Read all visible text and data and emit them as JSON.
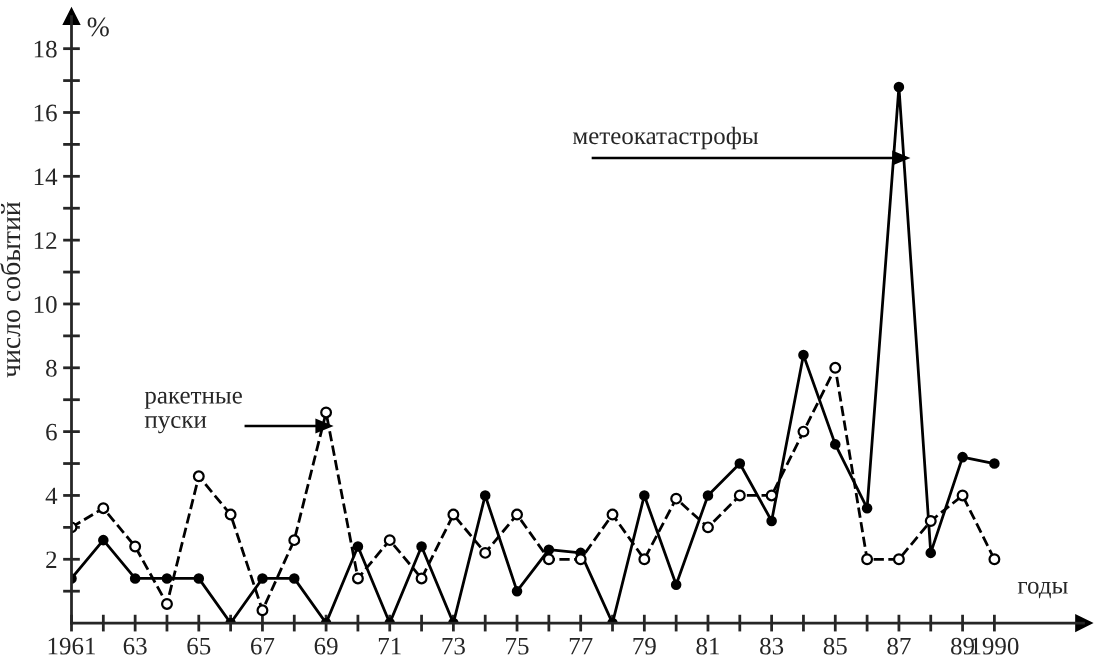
{
  "chart_data": {
    "type": "line",
    "ylabel": "число событий",
    "xlabel": "годы",
    "annotations": [
      "%",
      "метеокатастрофы",
      "ракетные\nпуски"
    ],
    "x": [
      1961,
      1962,
      1963,
      1964,
      1965,
      1966,
      1967,
      1968,
      1969,
      1970,
      1971,
      1972,
      1973,
      1974,
      1975,
      1976,
      1977,
      1978,
      1979,
      1980,
      1981,
      1982,
      1983,
      1984,
      1985,
      1986,
      1987,
      1988,
      1989,
      1990
    ],
    "series": [
      {
        "color": "#000000",
        "line_style": "solid",
        "marker": "circle",
        "values": [
          1.4,
          2.6,
          1.4,
          1.4,
          1.4,
          0,
          1.4,
          1.4,
          0,
          2.4,
          0,
          2.4,
          0,
          4,
          1,
          2.3,
          2.2,
          0,
          4,
          1.2,
          4,
          5,
          3.2,
          8.4,
          5.6,
          3.6,
          16.8,
          2.2,
          5.2,
          5
        ]
      },
      {
        "color": "#000000",
        "line_style": "dashed",
        "marker": "circle",
        "values": [
          3,
          3.6,
          2.4,
          0.6,
          4.6,
          3.4,
          0.4,
          2.6,
          6.6,
          1.4,
          2.6,
          1.4,
          3.4,
          2.2,
          3.4,
          2,
          2,
          3.4,
          2,
          3.9,
          3,
          4,
          4,
          6,
          8,
          2,
          2,
          3.2,
          4,
          2
        ]
      }
    ],
    "xlim": [
      1961,
      1992.8
    ],
    "ylim": [
      0,
      19
    ],
    "xticks": [
      {
        "value": 1961,
        "label": "1961"
      },
      {
        "value": 1962,
        "label": null
      },
      {
        "value": 1963,
        "label": "63"
      },
      {
        "value": 1964,
        "label": null
      },
      {
        "value": 1965,
        "label": "65"
      },
      {
        "value": 1966,
        "label": null
      },
      {
        "value": 1967,
        "label": "67"
      },
      {
        "value": 1968,
        "label": null
      },
      {
        "value": 1969,
        "label": "69"
      },
      {
        "value": 1970,
        "label": null
      },
      {
        "value": 1971,
        "label": "71"
      },
      {
        "value": 1972,
        "label": null
      },
      {
        "value": 1973,
        "label": "73"
      },
      {
        "value": 1974,
        "label": null
      },
      {
        "value": 1975,
        "label": "75"
      },
      {
        "value": 1976,
        "label": null
      },
      {
        "value": 1977,
        "label": "77"
      },
      {
        "value": 1978,
        "label": null
      },
      {
        "value": 1979,
        "label": "79"
      },
      {
        "value": 1980,
        "label": null
      },
      {
        "value": 1981,
        "label": "81"
      },
      {
        "value": 1982,
        "label": null
      },
      {
        "value": 1983,
        "label": "83"
      },
      {
        "value": 1984,
        "label": null
      },
      {
        "value": 1985,
        "label": "85"
      },
      {
        "value": 1986,
        "label": null
      },
      {
        "value": 1987,
        "label": "87"
      },
      {
        "value": 1988,
        "label": null
      },
      {
        "value": 1989,
        "label": "89"
      },
      {
        "value": 1990,
        "label": "1990"
      }
    ],
    "yticks": [
      {
        "value": 1,
        "label": null
      },
      2,
      {
        "value": 3,
        "label": null
      },
      4,
      {
        "value": 5,
        "label": null
      },
      6,
      {
        "value": 7,
        "label": null
      },
      8,
      {
        "value": 9,
        "label": null
      },
      10,
      {
        "value": 11,
        "label": null
      },
      12,
      {
        "value": 13,
        "label": null
      },
      14,
      {
        "value": 15,
        "label": null
      },
      16,
      {
        "value": 17,
        "label": null
      },
      18
    ],
    "grid": false,
    "legend": false
  }
}
